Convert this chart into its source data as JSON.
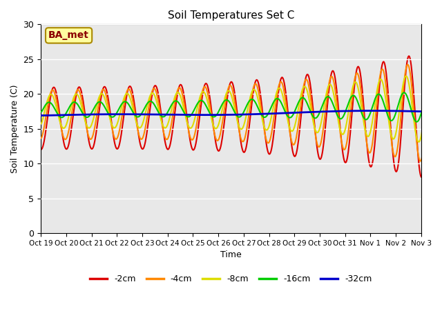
{
  "title": "Soil Temperatures Set C",
  "xlabel": "Time",
  "ylabel": "Soil Temperature (C)",
  "ylim": [
    0,
    30
  ],
  "annotation": "BA_met",
  "annotation_color": "#8B0000",
  "annotation_bg": "#FFFFA0",
  "bg_color": "#E8E8E8",
  "fig_bg": "#FFFFFF",
  "xtick_labels": [
    "Oct 19",
    "Oct 20",
    "Oct 21",
    "Oct 22",
    "Oct 23",
    "Oct 24",
    "Oct 25",
    "Oct 26",
    "Oct 27",
    "Oct 28",
    "Oct 29",
    "Oct 30",
    "Oct 31",
    "Nov 1",
    "Nov 2",
    "Nov 3"
  ],
  "legend": [
    "-2cm",
    "-4cm",
    "-8cm",
    "-16cm",
    "-32cm"
  ],
  "line_colors": [
    "#DD0000",
    "#FF8800",
    "#DDDD00",
    "#00CC00",
    "#0000CC"
  ],
  "line_widths": [
    1.5,
    1.5,
    1.5,
    1.5,
    2.0
  ]
}
